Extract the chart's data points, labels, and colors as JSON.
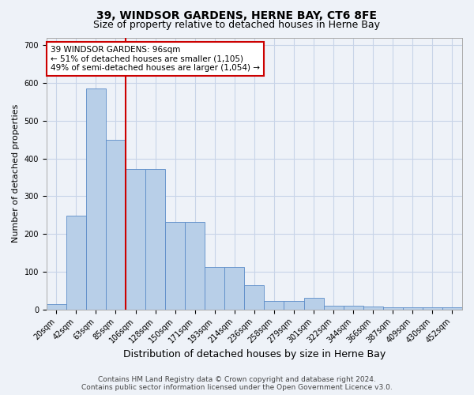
{
  "title": "39, WINDSOR GARDENS, HERNE BAY, CT6 8FE",
  "subtitle": "Size of property relative to detached houses in Herne Bay",
  "xlabel": "Distribution of detached houses by size in Herne Bay",
  "ylabel": "Number of detached properties",
  "footer_line1": "Contains HM Land Registry data © Crown copyright and database right 2024.",
  "footer_line2": "Contains public sector information licensed under the Open Government Licence v3.0.",
  "categories": [
    "20sqm",
    "42sqm",
    "63sqm",
    "85sqm",
    "106sqm",
    "128sqm",
    "150sqm",
    "171sqm",
    "193sqm",
    "214sqm",
    "236sqm",
    "258sqm",
    "279sqm",
    "301sqm",
    "322sqm",
    "344sqm",
    "366sqm",
    "387sqm",
    "409sqm",
    "430sqm",
    "452sqm"
  ],
  "bar_heights": [
    15,
    248,
    585,
    450,
    372,
    372,
    232,
    232,
    113,
    113,
    65,
    22,
    22,
    30,
    10,
    10,
    8,
    5,
    5,
    5,
    5
  ],
  "bar_color": "#b8cfe8",
  "bar_edge_color": "#5b8cc8",
  "grid_color": "#c8d4e8",
  "background_color": "#eef2f8",
  "vline_color": "#cc0000",
  "vline_x_idx": 3.5,
  "annotation_text": "39 WINDSOR GARDENS: 96sqm\n← 51% of detached houses are smaller (1,105)\n49% of semi-detached houses are larger (1,054) →",
  "annotation_box_color": "#ffffff",
  "annotation_box_edge": "#cc0000",
  "ylim": [
    0,
    720
  ],
  "yticks": [
    0,
    100,
    200,
    300,
    400,
    500,
    600,
    700
  ],
  "title_fontsize": 10,
  "subtitle_fontsize": 9,
  "ylabel_fontsize": 8,
  "xlabel_fontsize": 9,
  "tick_fontsize": 7,
  "footer_fontsize": 6.5,
  "annot_fontsize": 7.5
}
